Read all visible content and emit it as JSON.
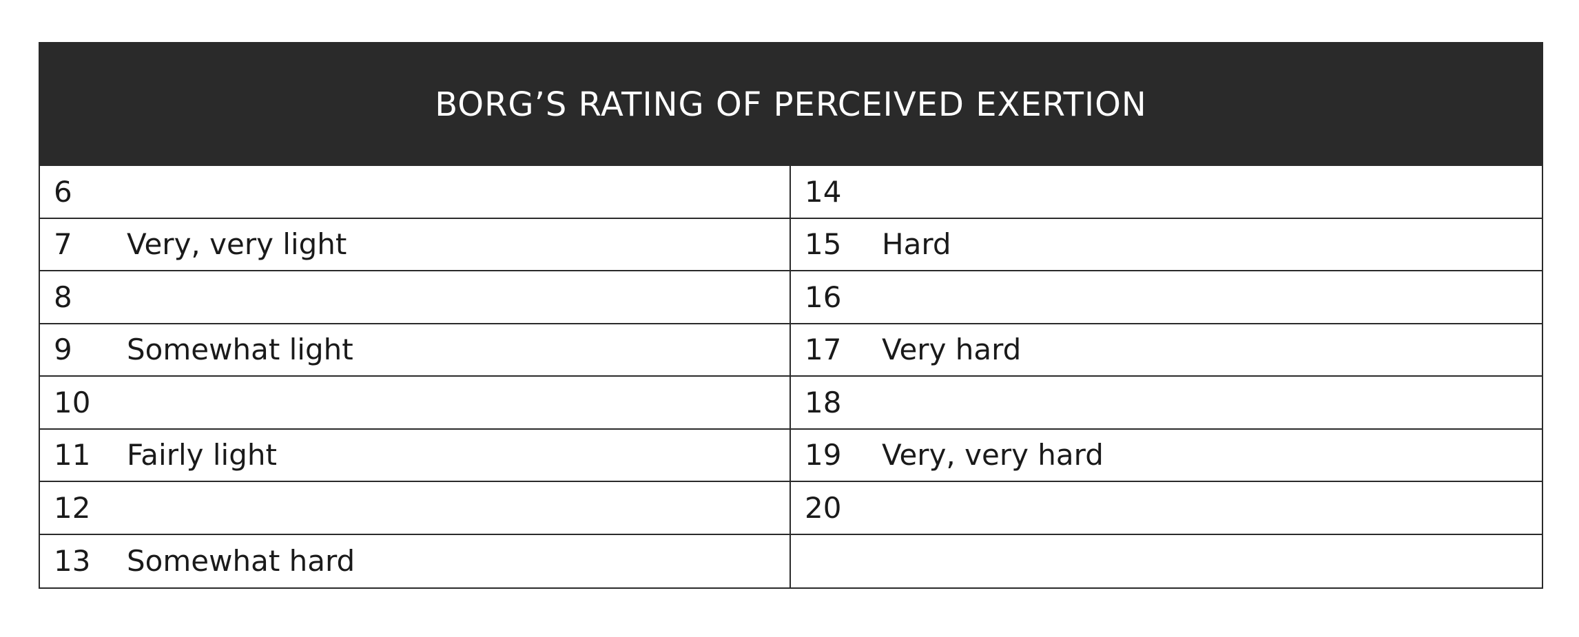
{
  "title": "BORG’S RATING OF PERCEIVED EXERTION",
  "left_rows": [
    {
      "value": "6",
      "label": ""
    },
    {
      "value": "7",
      "label": "Very, very light"
    },
    {
      "value": "8",
      "label": ""
    },
    {
      "value": "9",
      "label": "Somewhat light"
    },
    {
      "value": "10",
      "label": ""
    },
    {
      "value": "11",
      "label": "Fairly light"
    },
    {
      "value": "12",
      "label": ""
    },
    {
      "value": "13",
      "label": "Somewhat hard"
    }
  ],
  "right_rows": [
    {
      "value": "14",
      "label": ""
    },
    {
      "value": "15",
      "label": "Hard"
    },
    {
      "value": "16",
      "label": ""
    },
    {
      "value": "17",
      "label": "Very hard"
    },
    {
      "value": "18",
      "label": ""
    },
    {
      "value": "19",
      "label": "Very, very hard"
    },
    {
      "value": "20",
      "label": ""
    },
    {
      "value": "",
      "label": ""
    }
  ],
  "colors": {
    "header_bg": "#2a2a2a",
    "header_text": "#ffffff",
    "border": "#2a2a2a"
  }
}
